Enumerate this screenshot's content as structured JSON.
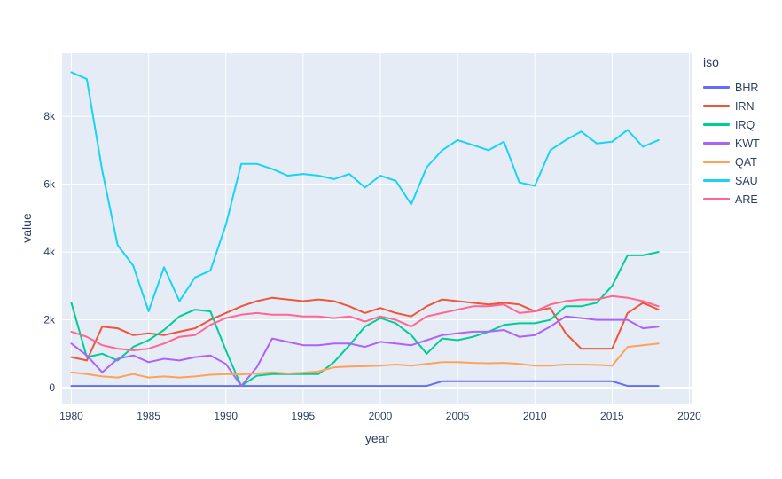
{
  "chart_data": {
    "type": "line",
    "title": "",
    "xlabel": "year",
    "ylabel": "value",
    "legend_title": "iso",
    "legend_position": "right",
    "grid": true,
    "plot_bg": "#E5ECF6",
    "grid_color": "#FFFFFF",
    "text_color": "#2a3f5f",
    "xlim": [
      1979.4,
      2020.2
    ],
    "ylim": [
      -470,
      9860
    ],
    "x_ticks": [
      {
        "value": 1980,
        "label": "1980"
      },
      {
        "value": 1985,
        "label": "1985"
      },
      {
        "value": 1990,
        "label": "1990"
      },
      {
        "value": 1995,
        "label": "1995"
      },
      {
        "value": 2000,
        "label": "2000"
      },
      {
        "value": 2005,
        "label": "2005"
      },
      {
        "value": 2010,
        "label": "2010"
      },
      {
        "value": 2015,
        "label": "2015"
      },
      {
        "value": 2020,
        "label": "2020"
      }
    ],
    "y_ticks": [
      {
        "value": 0,
        "label": "0"
      },
      {
        "value": 2000,
        "label": "2k"
      },
      {
        "value": 4000,
        "label": "4k"
      },
      {
        "value": 6000,
        "label": "6k"
      },
      {
        "value": 8000,
        "label": "8k"
      }
    ],
    "x": [
      1980,
      1981,
      1982,
      1983,
      1984,
      1985,
      1986,
      1987,
      1988,
      1989,
      1990,
      1991,
      1992,
      1993,
      1994,
      1995,
      1996,
      1997,
      1998,
      1999,
      2000,
      2001,
      2002,
      2003,
      2004,
      2005,
      2006,
      2007,
      2008,
      2009,
      2010,
      2011,
      2012,
      2013,
      2014,
      2015,
      2016,
      2017,
      2018
    ],
    "series": [
      {
        "name": "BHR",
        "color": "#636EFA",
        "values": [
          50,
          50,
          50,
          50,
          50,
          50,
          50,
          50,
          50,
          50,
          50,
          50,
          50,
          50,
          50,
          50,
          50,
          50,
          50,
          50,
          50,
          50,
          50,
          50,
          190,
          190,
          190,
          190,
          190,
          190,
          190,
          190,
          190,
          190,
          190,
          190,
          50,
          50,
          50
        ]
      },
      {
        "name": "IRN",
        "color": "#EF553B",
        "values": [
          900,
          800,
          1800,
          1750,
          1550,
          1600,
          1550,
          1650,
          1750,
          2000,
          2200,
          2400,
          2550,
          2650,
          2600,
          2550,
          2600,
          2550,
          2400,
          2200,
          2350,
          2200,
          2100,
          2400,
          2600,
          2550,
          2500,
          2450,
          2500,
          2450,
          2250,
          2350,
          1600,
          1150,
          1150,
          1150,
          2200,
          2500,
          2300
        ]
      },
      {
        "name": "IRQ",
        "color": "#00CC96",
        "values": [
          2500,
          900,
          1000,
          800,
          1200,
          1400,
          1700,
          2100,
          2300,
          2250,
          1100,
          50,
          350,
          400,
          400,
          400,
          400,
          750,
          1250,
          1800,
          2050,
          1900,
          1550,
          1000,
          1450,
          1400,
          1500,
          1650,
          1850,
          1900,
          1900,
          2000,
          2400,
          2400,
          2500,
          3000,
          3900,
          3900,
          4000
        ]
      },
      {
        "name": "KWT",
        "color": "#AB63FA",
        "values": [
          1300,
          950,
          450,
          850,
          950,
          750,
          850,
          800,
          900,
          950,
          700,
          50,
          600,
          1450,
          1350,
          1250,
          1250,
          1300,
          1300,
          1200,
          1350,
          1300,
          1250,
          1400,
          1550,
          1600,
          1650,
          1650,
          1700,
          1500,
          1550,
          1800,
          2100,
          2050,
          2000,
          2000,
          2000,
          1750,
          1800
        ]
      },
      {
        "name": "QAT",
        "color": "#FFA15A",
        "values": [
          450,
          400,
          330,
          300,
          400,
          300,
          330,
          300,
          330,
          380,
          400,
          390,
          420,
          450,
          420,
          440,
          480,
          600,
          620,
          630,
          650,
          680,
          650,
          700,
          750,
          750,
          730,
          720,
          730,
          700,
          650,
          650,
          680,
          680,
          670,
          650,
          1200,
          1250,
          1300
        ]
      },
      {
        "name": "SAU",
        "color": "#19D3F3",
        "values": [
          9300,
          9100,
          6400,
          4200,
          3600,
          2250,
          3550,
          2550,
          3250,
          3450,
          4800,
          6600,
          6600,
          6450,
          6250,
          6300,
          6250,
          6150,
          6300,
          5900,
          6250,
          6100,
          5400,
          6500,
          7000,
          7300,
          7150,
          7000,
          7250,
          6050,
          5950,
          7000,
          7300,
          7550,
          7200,
          7250,
          7600,
          7100,
          7300
        ]
      },
      {
        "name": "ARE",
        "color": "#FF6692",
        "values": [
          1650,
          1500,
          1250,
          1150,
          1100,
          1150,
          1300,
          1500,
          1550,
          1850,
          2050,
          2150,
          2200,
          2150,
          2150,
          2100,
          2100,
          2050,
          2100,
          1950,
          2100,
          2000,
          1800,
          2100,
          2200,
          2300,
          2400,
          2400,
          2450,
          2200,
          2250,
          2450,
          2550,
          2600,
          2600,
          2700,
          2650,
          2550,
          2400
        ]
      }
    ]
  }
}
